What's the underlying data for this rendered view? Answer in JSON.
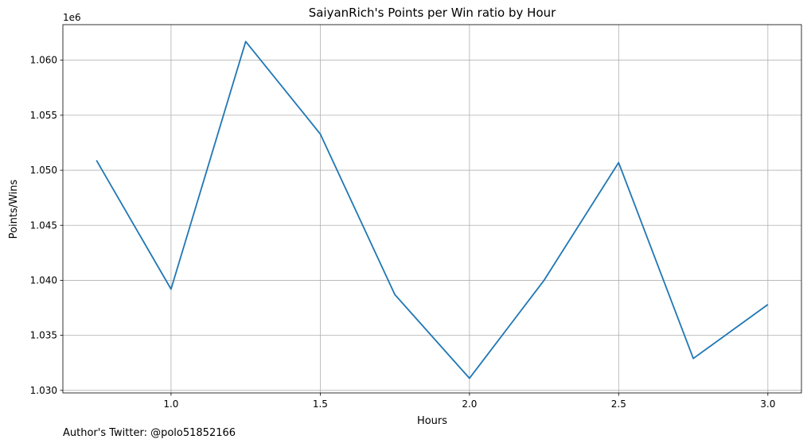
{
  "chart_data": {
    "type": "line",
    "title": "SaiyanRich's Points per Win ratio by Hour",
    "xlabel": "Hours",
    "ylabel": "Points/Wins",
    "y_offset_label": "1e6",
    "x": [
      0.75,
      1.0,
      1.25,
      1.5,
      1.75,
      2.0,
      2.25,
      2.5,
      2.75,
      3.0
    ],
    "series": [
      {
        "values": [
          1050900,
          1039200,
          1061700,
          1053300,
          1038700,
          1031100,
          1040000,
          1050700,
          1032900,
          1037800
        ],
        "color": "#1f77b4"
      }
    ],
    "xlim": [
      0.6375,
      3.1125
    ],
    "ylim": [
      1029770,
      1063230
    ],
    "x_ticks": [
      1.0,
      1.5,
      2.0,
      2.5,
      3.0
    ],
    "x_tick_labels": [
      "1.0",
      "1.5",
      "2.0",
      "2.5",
      "3.0"
    ],
    "y_ticks": [
      1030000,
      1035000,
      1040000,
      1045000,
      1050000,
      1055000,
      1060000
    ],
    "y_tick_labels": [
      "1.030",
      "1.035",
      "1.040",
      "1.045",
      "1.050",
      "1.055",
      "1.060"
    ],
    "grid": true
  },
  "footnote": "Author's Twitter: @polo51852166"
}
